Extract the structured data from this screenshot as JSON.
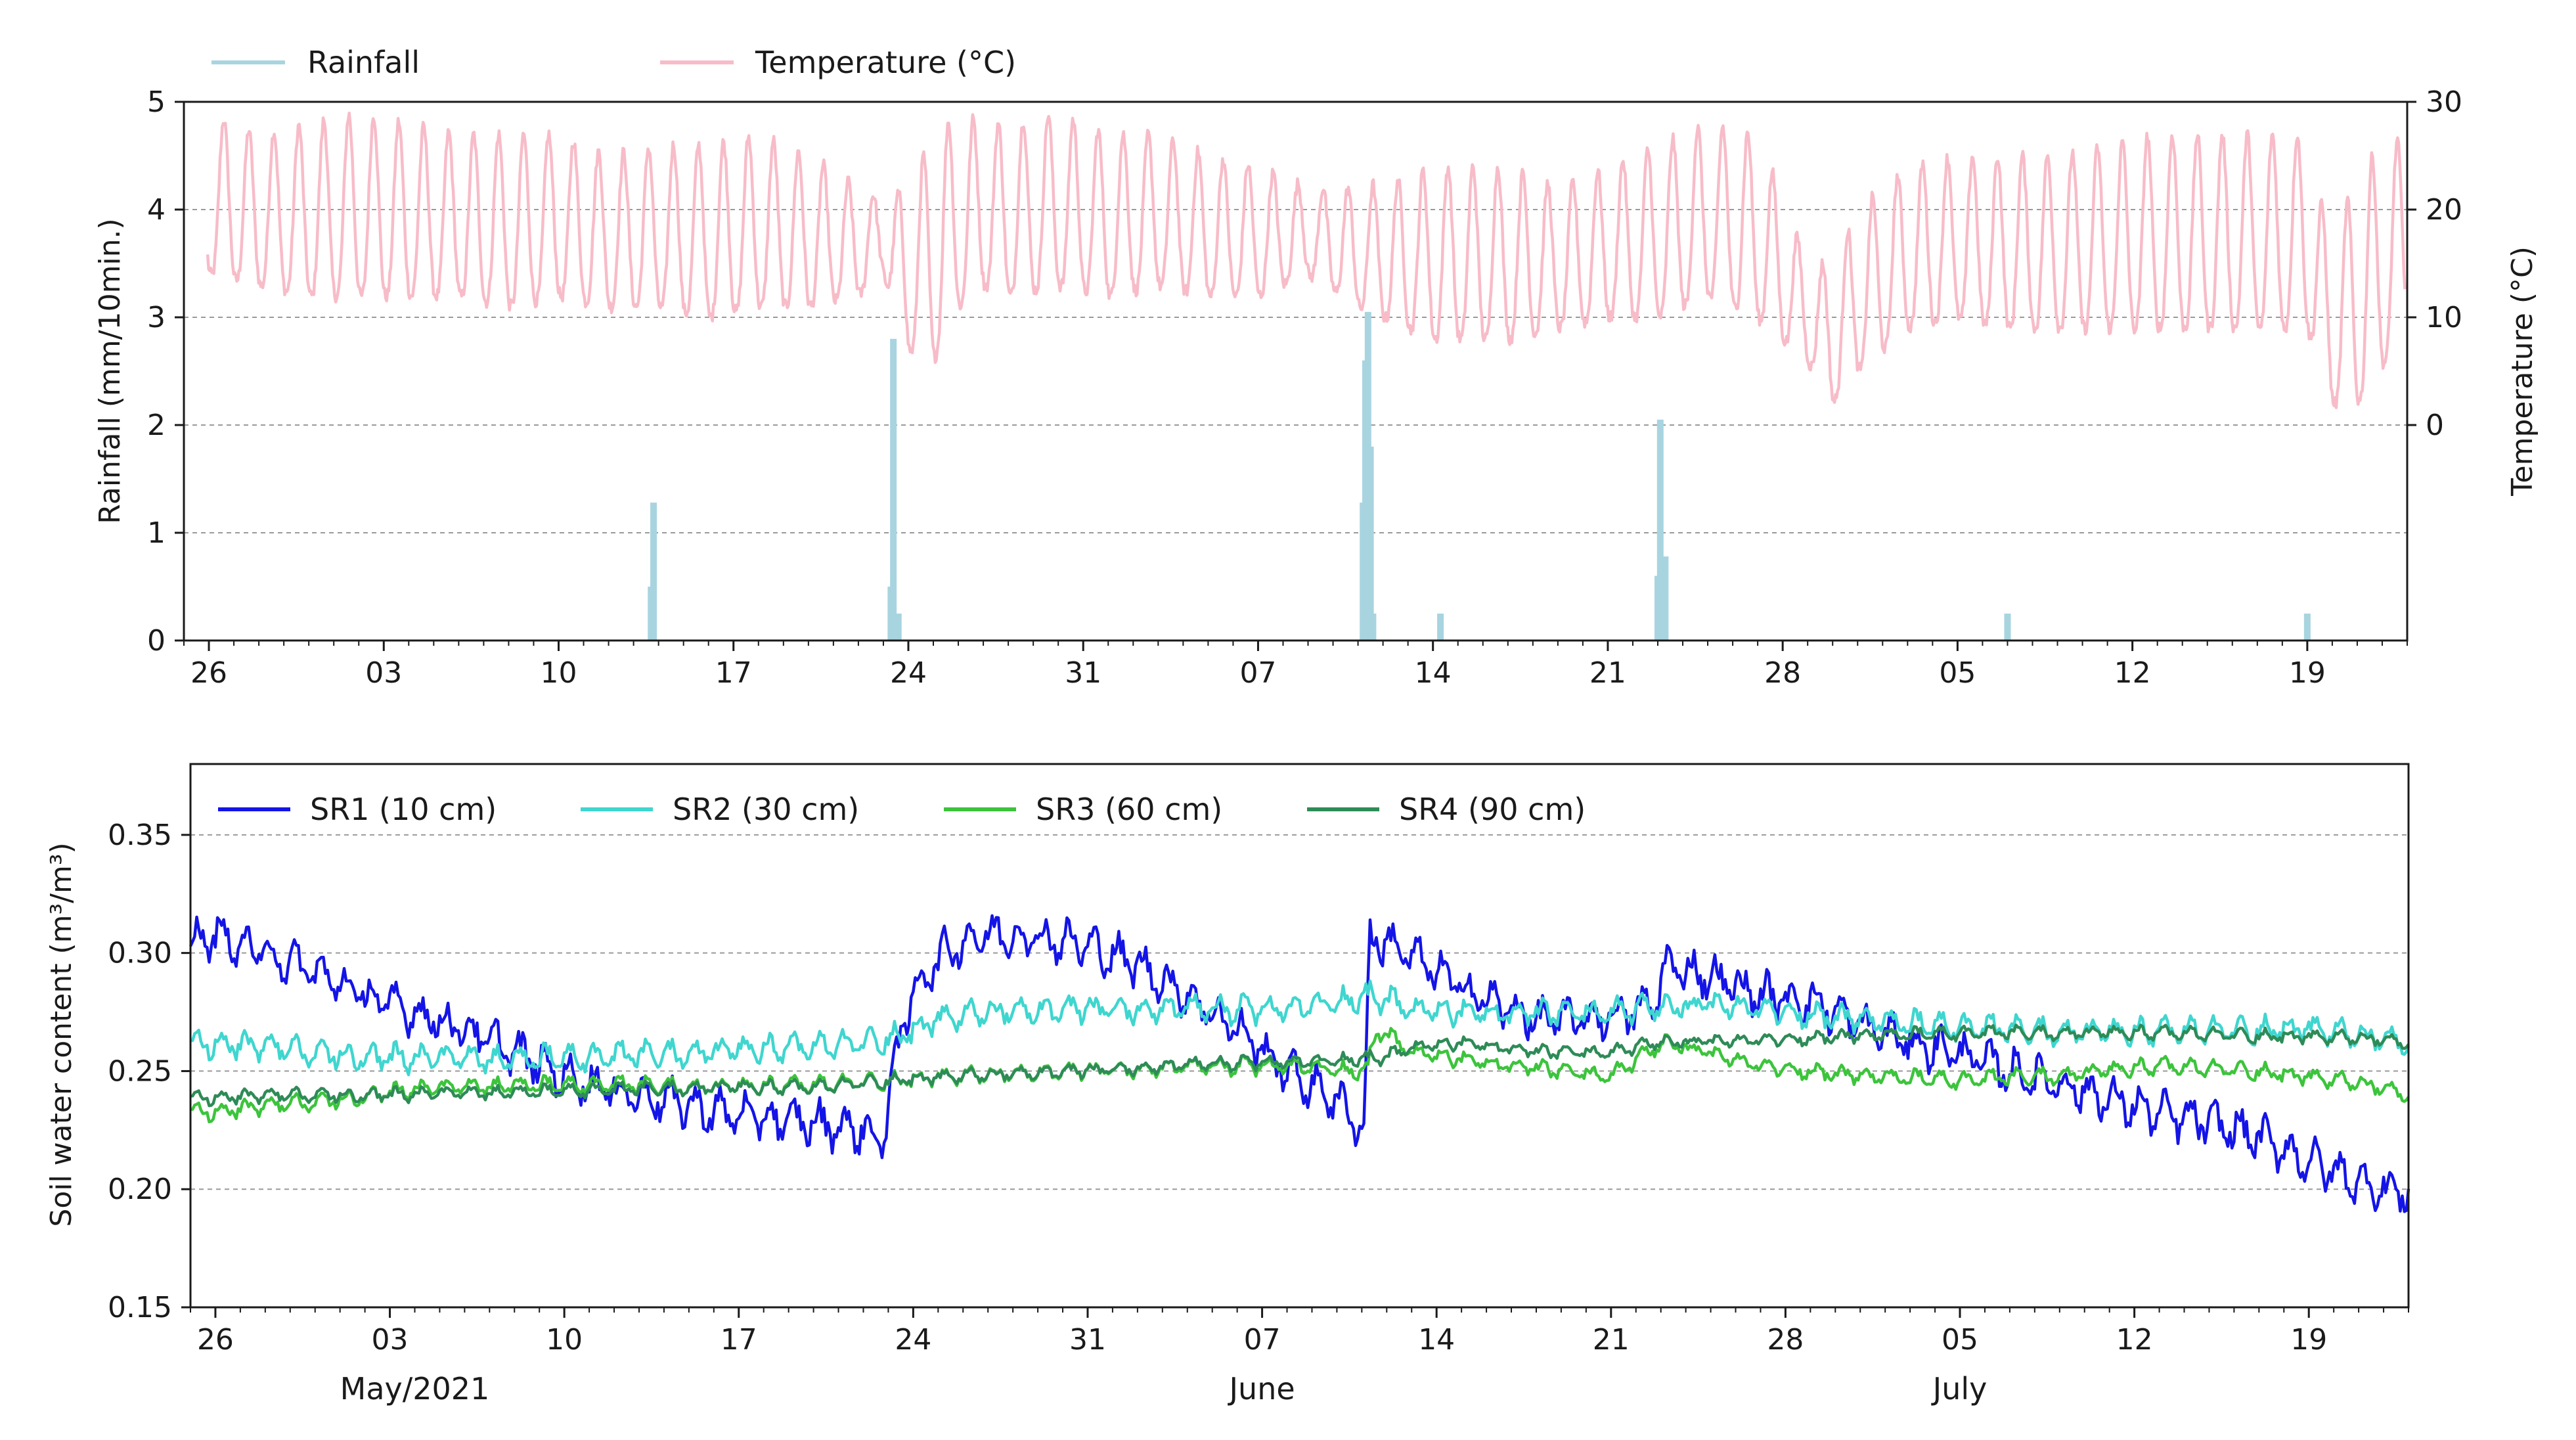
{
  "colors": {
    "rainfall": "#a8d4e0",
    "temperature": "#f7bcc8",
    "sr1": "#1414e6",
    "sr2": "#3fd6cf",
    "sr3": "#3cc43c",
    "sr4": "#2e8b57",
    "grid": "#9a9a9a"
  },
  "chart_data": [
    {
      "type": "bar+line",
      "title": "",
      "legend": [
        "Rainfall",
        "Temperature (°C)"
      ],
      "legend_position": "top-left (outside)",
      "ylabel_left": "Rainfall (mm/10min.)",
      "ylabel_right": "Temperature (°C)",
      "xlim": [
        -1,
        88
      ],
      "ylim_left": [
        0,
        5
      ],
      "yticks_left": [
        "0",
        "1",
        "2",
        "3",
        "4",
        "5"
      ],
      "ylim_right": [
        -20,
        30
      ],
      "yticks_right": [
        {
          "v": 0,
          "label": "0"
        },
        {
          "v": 10,
          "label": "10"
        },
        {
          "v": 20,
          "label": "20"
        },
        {
          "v": 30,
          "label": "30"
        }
      ],
      "xtick_labels": [
        {
          "day": 0,
          "label": "26"
        },
        {
          "day": 7,
          "label": "03"
        },
        {
          "day": 14,
          "label": "10"
        },
        {
          "day": 21,
          "label": "17"
        },
        {
          "day": 28,
          "label": "24"
        },
        {
          "day": 35,
          "label": "31"
        },
        {
          "day": 42,
          "label": "07"
        },
        {
          "day": 49,
          "label": "14"
        },
        {
          "day": 56,
          "label": "21"
        },
        {
          "day": 63,
          "label": "28"
        },
        {
          "day": 70,
          "label": "05"
        },
        {
          "day": 77,
          "label": "12"
        },
        {
          "day": 84,
          "label": "19"
        }
      ],
      "rainfall": [
        {
          "day": 17.8,
          "mm": 1.28
        },
        {
          "day": 17.7,
          "mm": 0.5
        },
        {
          "day": 27.4,
          "mm": 2.8
        },
        {
          "day": 27.3,
          "mm": 0.5
        },
        {
          "day": 27.6,
          "mm": 0.25
        },
        {
          "day": 46.4,
          "mm": 3.05
        },
        {
          "day": 46.3,
          "mm": 2.6
        },
        {
          "day": 46.2,
          "mm": 1.28
        },
        {
          "day": 46.5,
          "mm": 1.8
        },
        {
          "day": 46.6,
          "mm": 0.25
        },
        {
          "day": 49.3,
          "mm": 0.25
        },
        {
          "day": 58.1,
          "mm": 2.05
        },
        {
          "day": 58.3,
          "mm": 0.78
        },
        {
          "day": 58.0,
          "mm": 0.6
        },
        {
          "day": 72.0,
          "mm": 0.25
        },
        {
          "day": 84.0,
          "mm": 0.25
        }
      ],
      "temperature_series": {
        "name": "Temperature (°C)",
        "days": [
          0,
          2,
          4,
          6,
          8,
          10,
          12,
          14,
          16,
          18,
          20,
          22,
          24,
          26,
          27,
          28,
          29,
          30,
          31,
          32,
          34,
          36,
          38,
          40,
          42,
          44,
          46,
          48,
          49,
          50,
          52,
          54,
          56,
          58,
          60,
          62,
          64,
          65,
          66,
          68,
          70,
          72,
          74,
          76,
          78,
          80,
          82,
          84,
          85,
          86,
          88
        ],
        "daily_min": [
          14,
          13,
          12,
          12,
          12,
          12,
          11,
          12,
          11,
          11,
          10,
          11,
          11,
          12,
          14,
          7,
          6,
          11,
          13,
          12,
          13,
          12,
          13,
          12,
          12,
          14,
          11,
          9,
          8,
          8,
          8,
          9,
          10,
          10,
          12,
          10,
          6,
          2,
          5,
          9,
          10,
          9,
          9,
          9,
          9,
          9,
          9,
          9,
          2,
          2,
          9
        ],
        "daily_max": [
          29,
          27,
          28,
          29,
          28,
          27,
          27,
          27,
          25,
          26,
          26,
          27,
          25,
          22,
          21,
          22,
          27,
          29,
          28,
          28,
          29,
          27,
          27,
          25,
          24,
          22,
          22,
          23,
          24,
          24,
          24,
          22,
          24,
          26,
          28,
          27,
          15,
          15,
          20,
          24,
          25,
          25,
          25,
          26,
          27,
          27,
          27,
          27,
          16,
          24,
          27
        ]
      }
    },
    {
      "type": "line",
      "title": "",
      "ylabel": "Soil water content (m³/m³)",
      "xlim": [
        -1,
        88
      ],
      "ylim": [
        0.15,
        0.38
      ],
      "yticks": [
        "0.15",
        "0.20",
        "0.25",
        "0.30",
        "0.35"
      ],
      "legend_position": "top-left (inside)",
      "xtick_labels": [
        {
          "day": 0,
          "label": "26"
        },
        {
          "day": 7,
          "label": "03"
        },
        {
          "day": 14,
          "label": "10"
        },
        {
          "day": 21,
          "label": "17"
        },
        {
          "day": 28,
          "label": "24"
        },
        {
          "day": 35,
          "label": "31"
        },
        {
          "day": 42,
          "label": "07"
        },
        {
          "day": 49,
          "label": "14"
        },
        {
          "day": 56,
          "label": "21"
        },
        {
          "day": 63,
          "label": "28"
        },
        {
          "day": 70,
          "label": "05"
        },
        {
          "day": 77,
          "label": "12"
        },
        {
          "day": 84,
          "label": "19"
        }
      ],
      "month_labels": [
        {
          "day": 8,
          "label": "May/2021"
        },
        {
          "day": 42,
          "label": "June"
        },
        {
          "day": 70,
          "label": "July"
        }
      ],
      "series": [
        {
          "name": "SR1 (10 cm)",
          "key": "sr1",
          "days": [
            -1,
            0,
            2,
            4,
            6,
            8,
            10,
            12,
            14,
            16,
            18,
            20,
            22,
            24,
            26,
            26.9,
            27.1,
            28,
            29,
            30,
            31,
            33,
            35,
            37,
            39,
            41,
            43,
            45,
            46.1,
            46.3,
            47,
            49,
            51,
            53,
            55,
            57,
            57.9,
            58.1,
            60,
            62,
            64,
            66,
            68,
            70,
            72,
            74,
            76,
            78,
            80,
            82,
            84,
            86,
            88
          ],
          "values": [
            0.305,
            0.307,
            0.3,
            0.292,
            0.282,
            0.275,
            0.268,
            0.258,
            0.248,
            0.242,
            0.238,
            0.233,
            0.23,
            0.228,
            0.225,
            0.22,
            0.25,
            0.283,
            0.298,
            0.305,
            0.308,
            0.307,
            0.303,
            0.295,
            0.282,
            0.268,
            0.25,
            0.238,
            0.225,
            0.305,
            0.305,
            0.292,
            0.28,
            0.272,
            0.272,
            0.275,
            0.28,
            0.295,
            0.29,
            0.282,
            0.28,
            0.27,
            0.262,
            0.258,
            0.25,
            0.245,
            0.238,
            0.232,
            0.228,
            0.222,
            0.212,
            0.203,
            0.198
          ],
          "noise": 0.013
        },
        {
          "name": "SR2 (30 cm)",
          "key": "sr2",
          "days": [
            -1,
            0,
            4,
            8,
            12,
            16,
            20,
            24,
            26,
            27.5,
            29,
            31,
            35,
            39,
            43,
            46.5,
            48,
            52,
            56,
            60,
            64,
            68,
            72,
            76,
            80,
            84,
            88
          ],
          "values": [
            0.26,
            0.262,
            0.258,
            0.255,
            0.255,
            0.256,
            0.258,
            0.26,
            0.262,
            0.265,
            0.272,
            0.275,
            0.276,
            0.276,
            0.276,
            0.282,
            0.276,
            0.274,
            0.275,
            0.278,
            0.274,
            0.27,
            0.267,
            0.266,
            0.267,
            0.268,
            0.262
          ],
          "noise": 0.008
        },
        {
          "name": "SR3 (60 cm)",
          "key": "sr3",
          "days": [
            -1,
            0,
            4,
            8,
            12,
            16,
            20,
            24,
            27,
            30,
            35,
            40,
            43,
            46.2,
            46.6,
            48,
            52,
            56,
            58.2,
            62,
            66,
            70,
            74,
            78,
            82,
            86,
            88
          ],
          "values": [
            0.232,
            0.233,
            0.237,
            0.242,
            0.244,
            0.244,
            0.243,
            0.244,
            0.246,
            0.248,
            0.25,
            0.252,
            0.252,
            0.25,
            0.268,
            0.258,
            0.252,
            0.248,
            0.262,
            0.252,
            0.248,
            0.246,
            0.248,
            0.252,
            0.25,
            0.245,
            0.24
          ],
          "noise": 0.005
        },
        {
          "name": "SR4 (90 cm)",
          "key": "sr4",
          "days": [
            -1,
            0,
            4,
            8,
            12,
            16,
            20,
            24,
            27,
            30,
            35,
            40,
            44,
            47,
            48,
            50,
            53,
            56,
            58,
            62,
            66,
            70,
            74,
            78,
            82,
            86,
            88
          ],
          "values": [
            0.238,
            0.239,
            0.24,
            0.24,
            0.241,
            0.242,
            0.243,
            0.243,
            0.246,
            0.248,
            0.25,
            0.253,
            0.254,
            0.256,
            0.26,
            0.262,
            0.258,
            0.258,
            0.262,
            0.263,
            0.265,
            0.266,
            0.266,
            0.266,
            0.265,
            0.264,
            0.262
          ],
          "noise": 0.004
        }
      ]
    }
  ]
}
